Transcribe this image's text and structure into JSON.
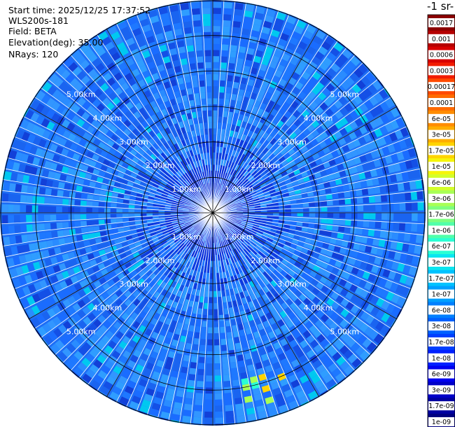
{
  "info": {
    "start_time": "Start time: 2025/12/25 17:37:52",
    "instrument": "WLS200s-181",
    "field": "Field: BETA",
    "elevation": "Elevation(deg): 35.00",
    "nrays": "NRays: 120"
  },
  "colorbar": {
    "title": "-1 sr-",
    "labels": [
      "0.0017",
      "0.001",
      "0.0006",
      "0.0003",
      "0.00017",
      "0.0001",
      "6e-05",
      "3e-05",
      "1.7e-05",
      "1e-05",
      "6e-06",
      "3e-06",
      "1.7e-06",
      "1e-06",
      "6e-07",
      "3e-07",
      "1.7e-07",
      "1e-07",
      "6e-08",
      "3e-08",
      "1.7e-08",
      "1e-08",
      "6e-09",
      "3e-09",
      "1.7e-09",
      "1e-09"
    ],
    "colors": [
      "#8b0000",
      "#b50000",
      "#d80000",
      "#f21c00",
      "#ff4a00",
      "#ff6a00",
      "#ff8c00",
      "#ffae00",
      "#ffd400",
      "#f5f50a",
      "#d4ff2a",
      "#a8ff55",
      "#7dff7f",
      "#50ffaa",
      "#2affd4",
      "#0ae6f0",
      "#00c2ff",
      "#00a0ff",
      "#0080ff",
      "#0060ff",
      "#0040ff",
      "#0020ff",
      "#0000f0",
      "#0000c8",
      "#0000a0",
      "#000080"
    ]
  },
  "chart_data": {
    "type": "heatmap",
    "projection": "polar (PPI scan)",
    "field": "BETA",
    "elevation_deg": 35.0,
    "n_rays": 120,
    "range_rings_km": [
      1,
      2,
      3,
      4,
      5
    ],
    "ring_labels": [
      "1.00km",
      "2.00km",
      "3.00km",
      "4.00km",
      "5.00km"
    ],
    "max_range_km": 6.0,
    "colorbar_range": [
      1e-09,
      0.0017
    ],
    "colorbar_scale": "log",
    "dominant_value_range": [
      1e-08,
      1e-07
    ],
    "hot_spot": {
      "azimuth_deg": 163,
      "range_km": [
        4.6,
        5.5
      ],
      "value_range": [
        1e-06,
        1e-05
      ]
    }
  }
}
